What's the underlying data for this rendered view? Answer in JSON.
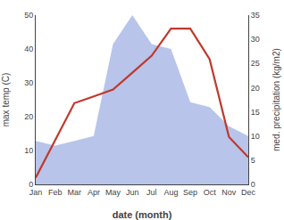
{
  "chart_data": {
    "type": "line",
    "xlabel": "date (month)",
    "ylabel": "max temp (C)",
    "y2label": "med. precipitation (kg/m2)",
    "categories": [
      "Jan",
      "Feb",
      "Mar",
      "Apr",
      "May",
      "Jun",
      "Jul",
      "Aug",
      "Sep",
      "Oct",
      "Nov",
      "Dec"
    ],
    "series": [
      {
        "type": "area",
        "color": "#b8c4ea",
        "axis": "y2",
        "values": [
          9,
          8,
          9,
          10,
          29,
          35,
          29,
          28,
          17,
          16,
          12,
          10
        ]
      },
      {
        "type": "line",
        "color": "#c0392b",
        "values": [
          2,
          13,
          24,
          26,
          28,
          33,
          38,
          46,
          46,
          37,
          14,
          8
        ]
      }
    ],
    "ylim": [
      0,
      50
    ],
    "yticks": [
      0,
      10,
      20,
      30,
      40,
      50
    ],
    "y2lim": [
      0,
      35
    ],
    "y2ticks": [
      0,
      5,
      10,
      15,
      20,
      25,
      30,
      35
    ],
    "grid": false
  }
}
